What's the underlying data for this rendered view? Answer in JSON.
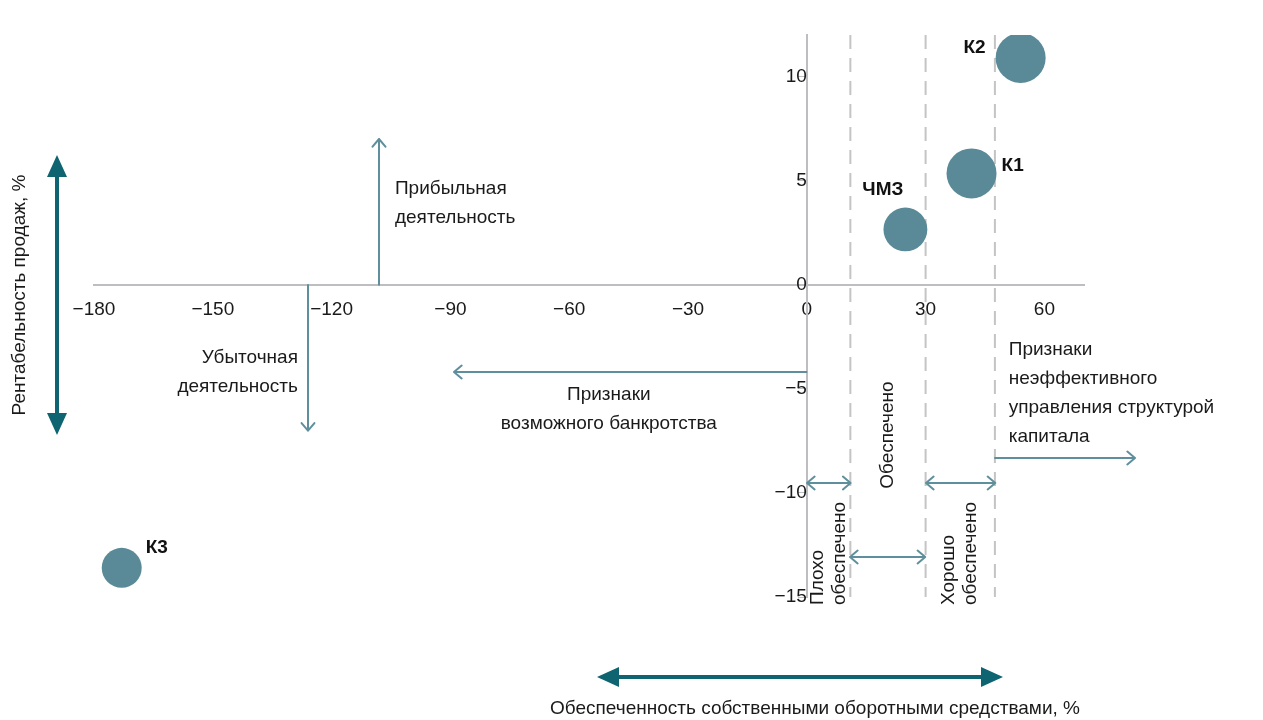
{
  "chart_data": {
    "type": "bubble",
    "xlabel": "Обеспеченность собственными оборотными средствами, %",
    "ylabel": "Рентабельность продаж, %",
    "xlim": [
      -180,
      70
    ],
    "ylim": [
      -15,
      12
    ],
    "xticks": [
      {
        "value": -180,
        "label": "−180"
      },
      {
        "value": -150,
        "label": "−150"
      },
      {
        "value": -120,
        "label": "−120"
      },
      {
        "value": -90,
        "label": "−90"
      },
      {
        "value": -60,
        "label": "−60"
      },
      {
        "value": -30,
        "label": "−30"
      },
      0,
      30,
      60
    ],
    "yticks": [
      {
        "value": -15,
        "label": "−15"
      },
      {
        "value": -10,
        "label": "−10"
      },
      {
        "value": -5,
        "label": "−5"
      },
      0,
      5,
      10
    ],
    "series": [
      {
        "name": "К1",
        "color": "#5a8a98",
        "x": [
          41.6
        ],
        "values": [
          5.35
        ],
        "sizes": [
          1
        ]
      },
      {
        "name": "К2",
        "color": "#5a8a98",
        "x": [
          54
        ],
        "values": [
          10.9
        ],
        "sizes": [
          1
        ]
      },
      {
        "name": "К3",
        "color": "#5a8a98",
        "x": [
          -173
        ],
        "values": [
          -13.6
        ],
        "sizes": [
          0.64
        ]
      },
      {
        "name": "ЧМЗ",
        "color": "#5a8a98",
        "x": [
          24.9
        ],
        "values": [
          2.66
        ],
        "sizes": [
          0.77
        ]
      }
    ],
    "ref_lines": [
      {
        "axis": "x",
        "value": 11,
        "color": "#c4c4c4",
        "line_style": "dashed"
      },
      {
        "axis": "x",
        "value": 30,
        "color": "#c4c4c4",
        "line_style": "dashed"
      },
      {
        "axis": "x",
        "value": 47.5,
        "color": "#c4c4c4",
        "line_style": "dashed"
      }
    ],
    "annotations": [
      "Прибыльная\nдеятельность",
      "Убыточная\nдеятельность",
      "Признаки\nвозможного банкротства",
      "Признаки\nнеэффективного\nуправления структурой\nкапитала",
      "Плохо\nобеспечено",
      "Обеспечено",
      {
        "text": "Хорошо\nобеспечено",
        "x": 47.5,
        "y": -9.5
      }
    ],
    "grid": false,
    "legend": false,
    "marker": "circle"
  }
}
